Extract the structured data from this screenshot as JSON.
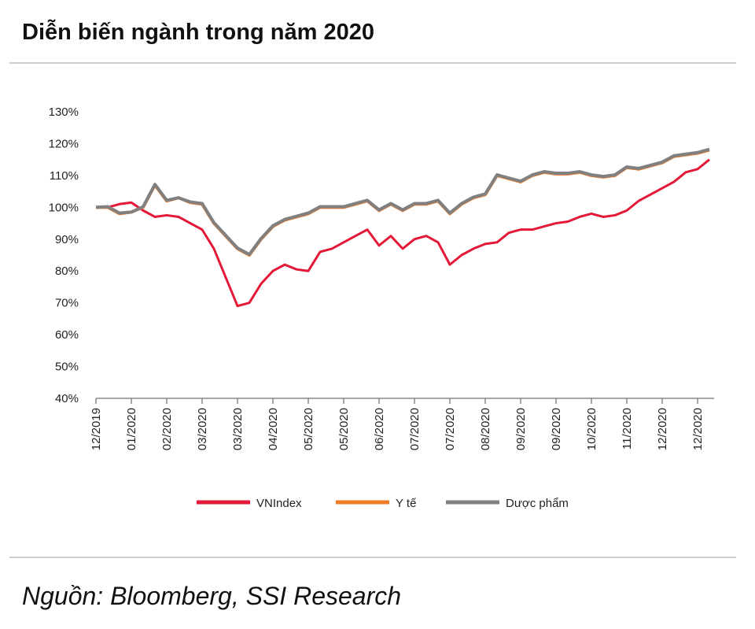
{
  "chart_data": {
    "type": "line",
    "title": "Diễn biến ngành trong năm 2020",
    "source": "Nguồn: Bloomberg, SSI Research",
    "categories": [
      "12/2019",
      null,
      null,
      "01/2020",
      null,
      null,
      "02/2020",
      null,
      null,
      "03/2020",
      null,
      null,
      "03/2020",
      null,
      null,
      "04/2020",
      null,
      null,
      "05/2020",
      null,
      null,
      "05/2020",
      null,
      null,
      "06/2020",
      null,
      null,
      "07/2020",
      null,
      null,
      "07/2020",
      null,
      null,
      "08/2020",
      null,
      null,
      "09/2020",
      null,
      null,
      "09/2020",
      null,
      null,
      "10/2020",
      null,
      null,
      "11/2020",
      null,
      null,
      "12/2020",
      null,
      null,
      "12/2020",
      null
    ],
    "series": [
      {
        "name": "VNIndex",
        "color": "#e31937",
        "values": [
          100,
          100,
          101,
          101.5,
          99,
          97,
          97.5,
          97,
          95,
          93,
          87,
          78,
          69,
          70,
          76,
          80,
          82,
          80.5,
          80,
          86,
          87,
          89,
          91,
          93,
          88,
          91,
          87,
          90,
          91,
          89,
          82,
          85,
          87,
          88.5,
          89,
          92,
          93,
          93,
          94,
          95,
          95.5,
          97,
          98,
          97,
          97.5,
          99,
          102,
          104,
          106,
          108,
          111,
          112,
          115
        ]
      },
      {
        "name": "Y tế",
        "color": "#f07c2a",
        "values": [
          100,
          100,
          98,
          98.5,
          100,
          107,
          102,
          103,
          101.5,
          101,
          95,
          91,
          87,
          85,
          90,
          94,
          96,
          97,
          98,
          100,
          100,
          100,
          101,
          102,
          99,
          101,
          99,
          101,
          101,
          102,
          98,
          101,
          103,
          104,
          110,
          109,
          108,
          110,
          111,
          110.5,
          110.5,
          111,
          110,
          109.5,
          110,
          112.5,
          112,
          113,
          114,
          116,
          116.5,
          117,
          118
        ]
      },
      {
        "name": "Dược phẩm",
        "color": "#808080",
        "values": [
          100,
          100.2,
          98.2,
          98.5,
          100.2,
          107.2,
          102.2,
          103,
          101.7,
          101.2,
          95.2,
          91.2,
          87.2,
          85.2,
          90.2,
          94.2,
          96.2,
          97.2,
          98.2,
          100.2,
          100.2,
          100.2,
          101.2,
          102.2,
          99.2,
          101.2,
          99.2,
          101.2,
          101.2,
          102.2,
          98.2,
          101.2,
          103.2,
          104.2,
          110.2,
          109.2,
          108.2,
          110.2,
          111.2,
          110.7,
          110.7,
          111.2,
          110.2,
          109.7,
          110.2,
          112.7,
          112.2,
          113.2,
          114.2,
          116.2,
          116.7,
          117.2,
          118.2
        ]
      }
    ],
    "ylim": [
      40,
      130
    ],
    "yticks": [
      {
        "value": 40,
        "label": "40%"
      },
      {
        "value": 50,
        "label": "50%"
      },
      {
        "value": 60,
        "label": "60%"
      },
      {
        "value": 70,
        "label": "70%"
      },
      {
        "value": 80,
        "label": "80%"
      },
      {
        "value": 90,
        "label": "90%"
      },
      {
        "value": 100,
        "label": "100%"
      },
      {
        "value": 110,
        "label": "110%"
      },
      {
        "value": 120,
        "label": "120%"
      },
      {
        "value": 130,
        "label": "130%"
      }
    ],
    "grid": false
  }
}
